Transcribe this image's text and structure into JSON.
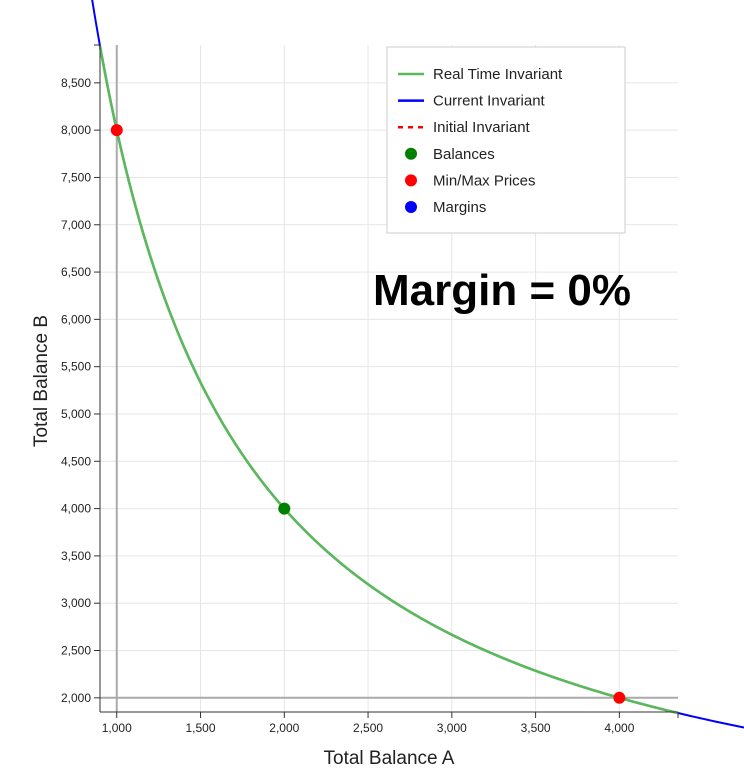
{
  "chart_data": {
    "type": "line",
    "xlabel": "Total Balance A",
    "ylabel": "Total Balance B",
    "annotation": "Margin = 0%",
    "xlim": [
      900,
      4350
    ],
    "ylim": [
      1850,
      8900
    ],
    "x_ticks": [
      1000,
      1500,
      2000,
      2500,
      3000,
      3500,
      4000
    ],
    "x_tick_labels": [
      "1,000",
      "1,500",
      "2,000",
      "2,500",
      "3,000",
      "3,500",
      "4,000"
    ],
    "y_ticks": [
      2000,
      2500,
      3000,
      3500,
      4000,
      4500,
      5000,
      5500,
      6000,
      6500,
      7000,
      7500,
      8000,
      8500
    ],
    "y_tick_labels": [
      "2,000",
      "2,500",
      "3,000",
      "3,500",
      "4,000",
      "4,500",
      "5,000",
      "5,500",
      "6,000",
      "6,500",
      "7,000",
      "7,500",
      "8,000",
      "8,500"
    ],
    "grid": true,
    "legend_position": "top-right",
    "invariant_k": 8000000,
    "min_balance_a": 1000,
    "min_balance_b": 2000,
    "series": [
      {
        "name": "Real Time Invariant",
        "kind": "line",
        "color": "#5cb85c",
        "x_range": [
          900,
          4350
        ],
        "k": 8000000
      },
      {
        "name": "Current Invariant",
        "kind": "line",
        "color": "#0000ff",
        "x_range": [
          800,
          4800
        ],
        "k": 8000000
      },
      {
        "name": "Initial Invariant",
        "kind": "dashed-line",
        "color": "#ff0000",
        "points": []
      },
      {
        "name": "Balances",
        "kind": "points",
        "color": "#008000",
        "points": [
          [
            2000,
            4000
          ]
        ]
      },
      {
        "name": "Min/Max Prices",
        "kind": "points",
        "color": "#ff0000",
        "points": [
          [
            1000,
            8000
          ],
          [
            4000,
            2000
          ]
        ]
      },
      {
        "name": "Margins",
        "kind": "points",
        "color": "#0000ff",
        "points": []
      }
    ]
  }
}
